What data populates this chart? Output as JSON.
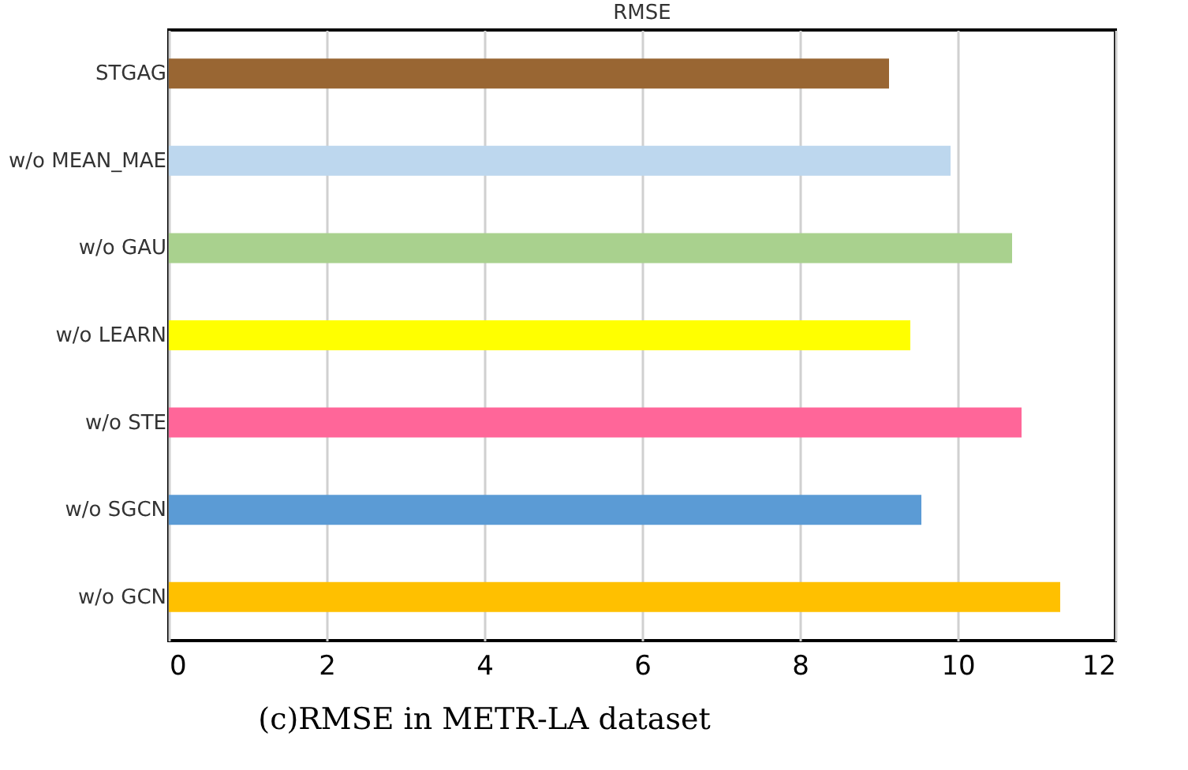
{
  "chart_data": {
    "type": "bar",
    "orientation": "horizontal",
    "title": "RMSE",
    "categories": [
      "STGAG",
      "w/o MEAN_MAE",
      "w/o GAU",
      "w/o LEARN",
      "w/o STE",
      "w/o SGCN",
      "w/o GCN"
    ],
    "values": [
      9.13,
      9.91,
      10.69,
      9.4,
      10.81,
      9.54,
      11.3
    ],
    "colors": [
      "#996633",
      "#bdd7ee",
      "#a9d18e",
      "#ffff00",
      "#ff6699",
      "#5b9bd5",
      "#ffc000"
    ],
    "xlim": [
      0,
      12
    ],
    "xticks": [
      0,
      2,
      4,
      6,
      8,
      10,
      12
    ],
    "grid": "x",
    "annotations": [
      "(c)RMSE  in  METR-LA  dataset"
    ]
  }
}
